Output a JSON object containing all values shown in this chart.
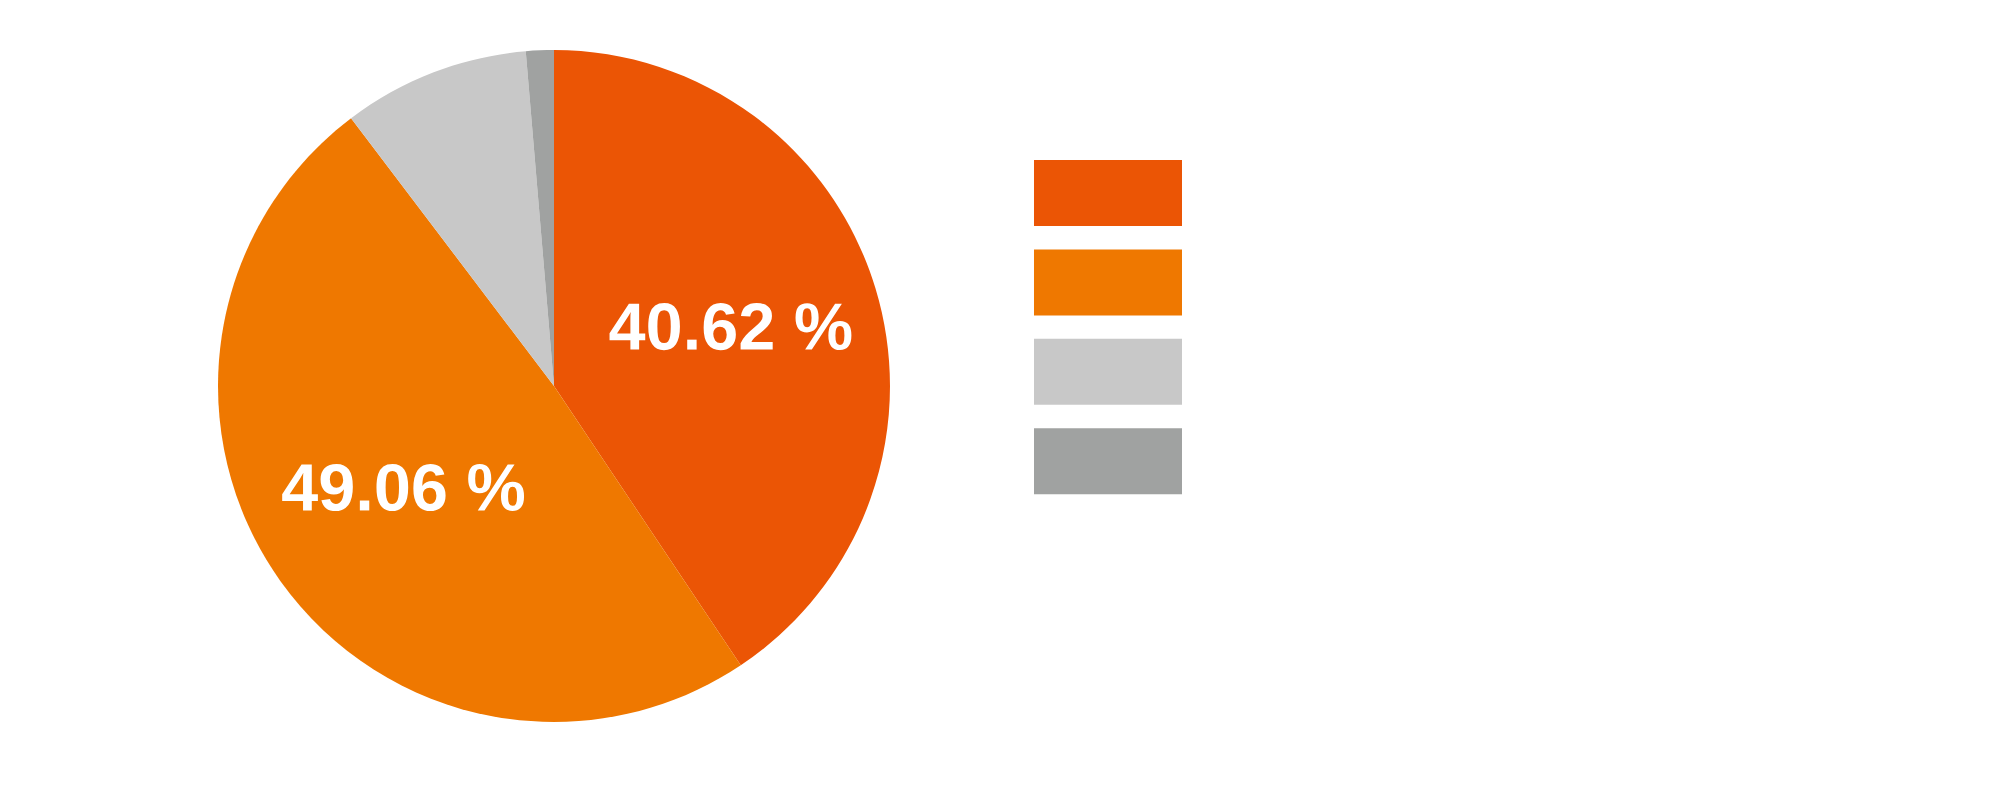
{
  "chart_data": {
    "type": "pie",
    "categories": [
      null,
      null,
      null,
      null
    ],
    "values": [
      40.62,
      49.06,
      8.98,
      1.34
    ],
    "colors": [
      "#eb5505",
      "#ef7800",
      "#c8c8c8",
      "#a0a2a1"
    ],
    "value_labels": [
      "40.62 %",
      "49.06 %",
      null,
      null
    ]
  }
}
